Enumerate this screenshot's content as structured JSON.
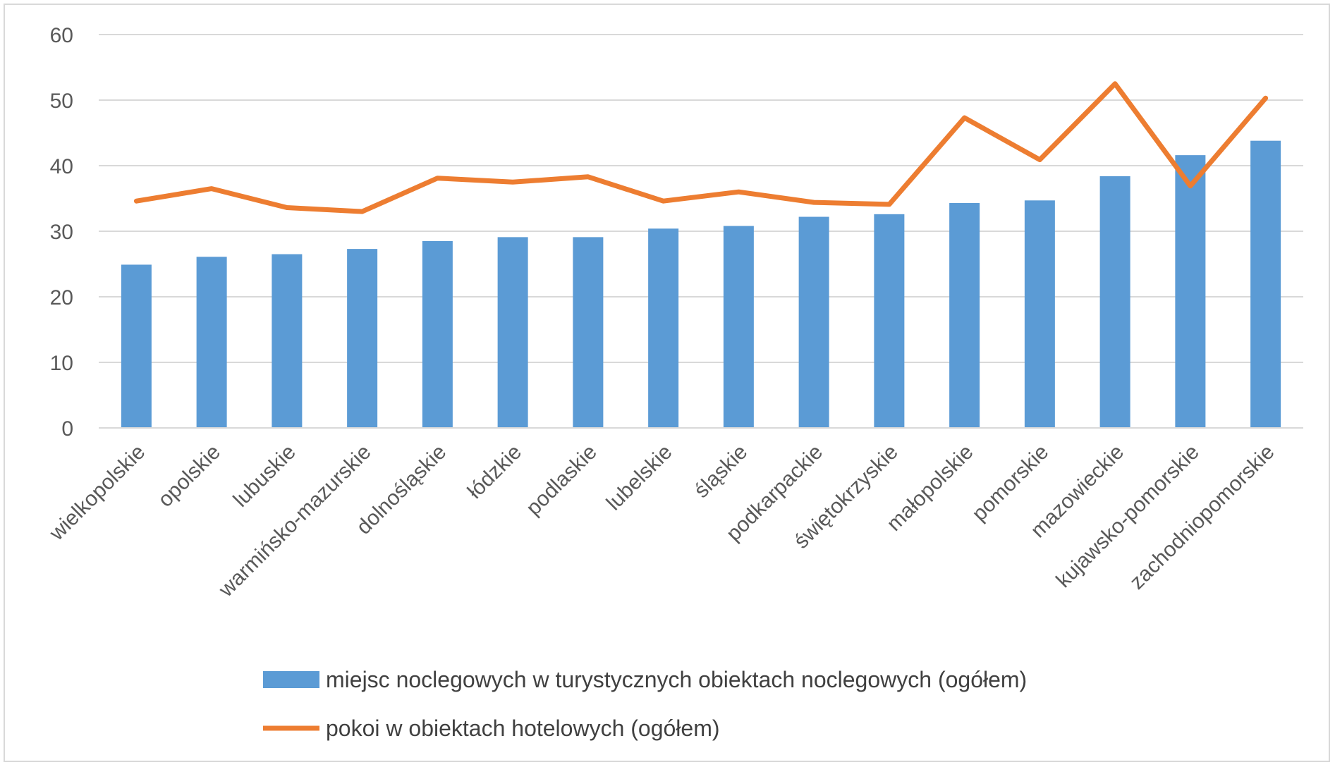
{
  "chart_data": {
    "type": "bar",
    "categories": [
      "wielkopolskie",
      "opolskie",
      "lubuskie",
      "warmińsko-mazurskie",
      "dolnośląskie",
      "łódzkie",
      "podlaskie",
      "lubelskie",
      "śląskie",
      "podkarpackie",
      "świętokrzyskie",
      "małopolskie",
      "pomorskie",
      "mazowieckie",
      "kujawsko-pomorskie",
      "zachodniopomorskie"
    ],
    "series": [
      {
        "name": "miejsc noclegowych w turystycznych obiektach noclegowych (ogółem)",
        "type": "bar",
        "color": "#5b9bd5",
        "values": [
          24.9,
          26.1,
          26.5,
          27.3,
          28.5,
          29.1,
          29.1,
          30.4,
          30.8,
          32.2,
          32.6,
          34.3,
          34.7,
          38.4,
          41.6,
          43.8
        ]
      },
      {
        "name": "pokoi w obiektach hotelowych (ogółem)",
        "type": "line",
        "color": "#ed7d31",
        "values": [
          34.6,
          36.5,
          33.6,
          33.0,
          38.1,
          37.5,
          38.3,
          34.6,
          36.0,
          34.4,
          34.1,
          47.3,
          40.9,
          52.5,
          36.9,
          50.3
        ]
      }
    ],
    "yticks": [
      "0",
      "10",
      "20",
      "30",
      "40",
      "50",
      "60"
    ],
    "ylim": [
      0,
      60
    ],
    "grid": true,
    "legend_position": "bottom"
  }
}
